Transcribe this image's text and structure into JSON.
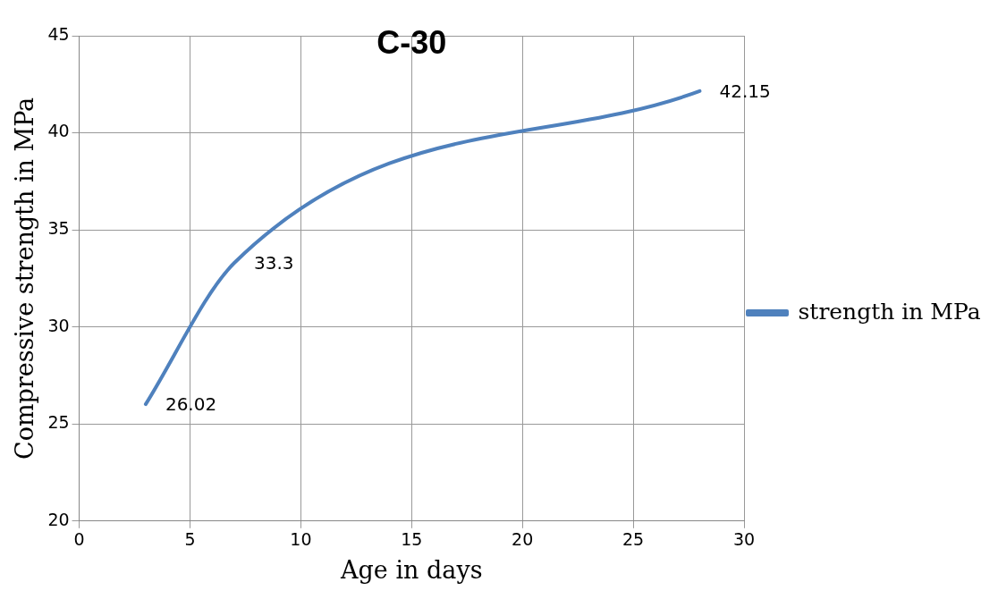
{
  "chart_data": {
    "type": "line",
    "title": "C-30",
    "xlabel": "Age in days",
    "ylabel": "Compressive strength in MPa",
    "x": [
      3,
      7,
      28
    ],
    "series": [
      {
        "name": "strength in MPa",
        "color": "#4f81bd",
        "values": [
          26.02,
          33.3,
          42.15
        ]
      }
    ],
    "xlim": [
      0,
      30
    ],
    "xticks": [
      0,
      5,
      10,
      15,
      20,
      25,
      30
    ],
    "ylim": [
      20,
      45
    ],
    "yticks": [
      20,
      25,
      30,
      35,
      40,
      45
    ],
    "grid": true,
    "legend": "right",
    "marker": "none",
    "line_style": "solid",
    "data_labels": true
  }
}
